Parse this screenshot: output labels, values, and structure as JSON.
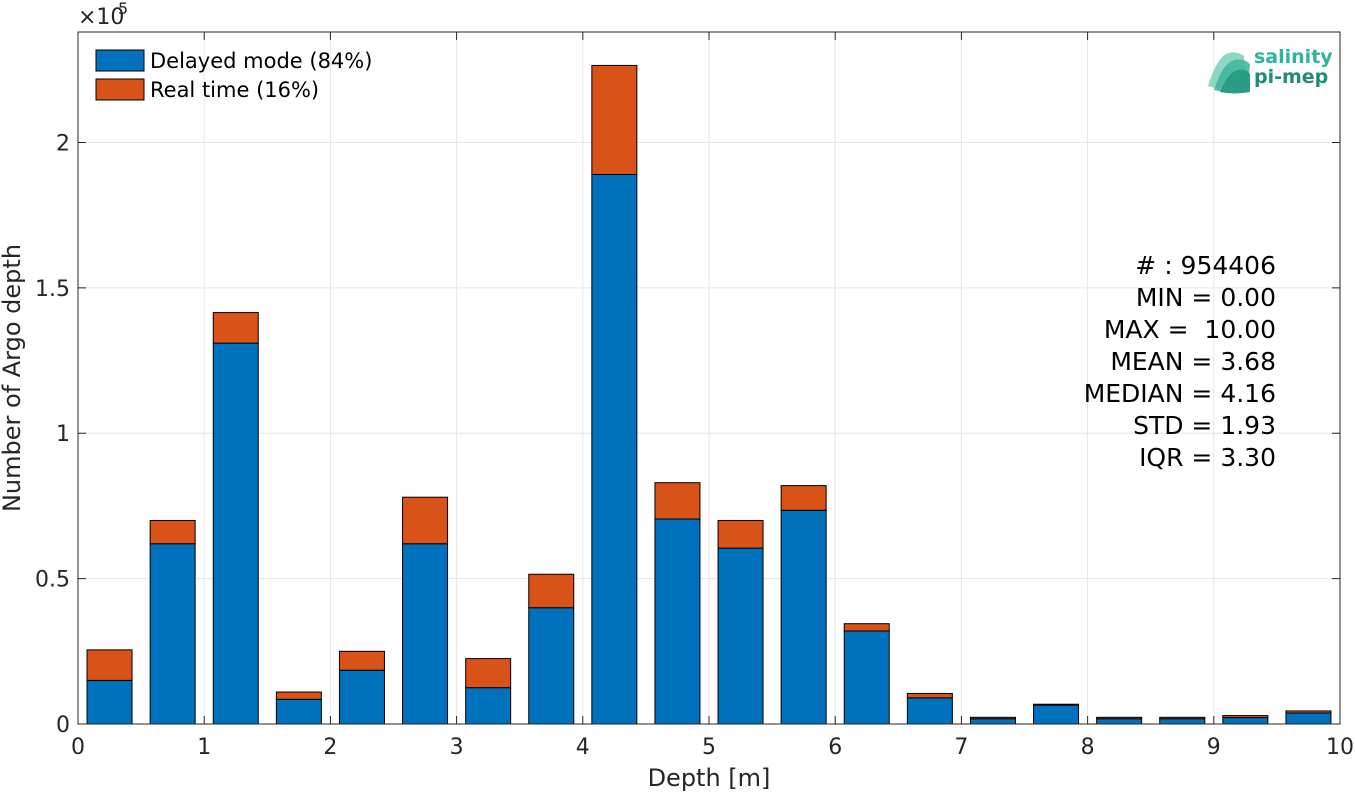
{
  "chart_data": {
    "type": "bar",
    "stacked": true,
    "bin_centers": [
      0.25,
      0.75,
      1.25,
      1.75,
      2.25,
      2.75,
      3.25,
      3.75,
      4.25,
      4.75,
      5.25,
      5.75,
      6.25,
      6.75,
      7.25,
      7.75,
      8.25,
      8.75,
      9.25,
      9.75
    ],
    "bin_width": 0.5,
    "series": [
      {
        "name": "Delayed mode (84%)",
        "color": "#0072BD",
        "values": [
          15000,
          62000,
          131000,
          8500,
          18500,
          62000,
          12500,
          40000,
          189000,
          70500,
          60500,
          73500,
          32000,
          9000,
          1800,
          6500,
          1800,
          1800,
          2200,
          3800
        ]
      },
      {
        "name": "Real time (16%)",
        "color": "#D95319",
        "values": [
          10500,
          8000,
          10500,
          2500,
          6500,
          16000,
          10000,
          11500,
          37500,
          12500,
          9500,
          8500,
          2500,
          1500,
          500,
          300,
          500,
          500,
          700,
          700
        ]
      }
    ],
    "xlabel": "Depth [m]",
    "ylabel": "Number of Argo depth",
    "xlim": [
      0,
      10
    ],
    "ylim": [
      0,
      238000
    ],
    "xticks": [
      0,
      1,
      2,
      3,
      4,
      5,
      6,
      7,
      8,
      9,
      10
    ],
    "yticks": [
      0,
      50000,
      100000,
      150000,
      200000
    ],
    "ytick_labels": [
      "0",
      "0.5",
      "1",
      "1.5",
      "2"
    ],
    "y_exponent_label": "×10",
    "y_exponent_power": "5",
    "grid": true,
    "legend_position": "top-left",
    "stats": [
      "# : 954406",
      "MIN = 0.00",
      "MAX =  10.00",
      "MEAN = 3.68",
      "MEDIAN = 4.16",
      "STD = 1.93",
      "IQR = 3.30"
    ]
  },
  "logo": {
    "line1": "salinity",
    "line2": "pi-mep",
    "color1": "#2BB59A",
    "color2": "#1E8C78"
  }
}
